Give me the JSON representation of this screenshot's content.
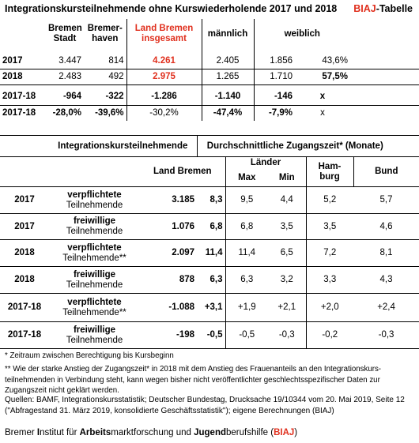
{
  "header": {
    "title": "Integrationskursteilnehmende ohne Kurswiederholende 2017 und 2018",
    "brand_prefix": "BIAJ",
    "brand_suffix": "-Tabelle"
  },
  "table1": {
    "head": {
      "bremen_stadt_1": "Bremen",
      "bremen_stadt_2": "Stadt",
      "bremerhaven_1": "Bremer-",
      "bremerhaven_2": "haven",
      "land_1": "Land Bremen",
      "land_2": "insgesamt",
      "maennlich": "männlich",
      "weiblich": "weiblich"
    },
    "rows": [
      {
        "year": "2017",
        "stadt": "3.447",
        "bhv": "814",
        "land": "4.261",
        "m": "2.405",
        "w": "1.856",
        "pct": "43,6%"
      },
      {
        "year": "2018",
        "stadt": "2.483",
        "bhv": "492",
        "land": "2.975",
        "m": "1.265",
        "w": "1.710",
        "pct": "57,5%"
      },
      {
        "year": "2017-18",
        "stadt": "-964",
        "bhv": "-322",
        "land": "-1.286",
        "m": "-1.140",
        "w": "-146",
        "pct": "x"
      },
      {
        "year": "2017-18",
        "stadt": "-28,0%",
        "bhv": "-39,6%",
        "land": "-30,2%",
        "m": "-47,4%",
        "w": "-7,9%",
        "pct": "x"
      }
    ]
  },
  "table2": {
    "head": {
      "group": "Integrationskursteilnehmende",
      "durchschnitt": "Durchschnittliche Zugangszeit* (Monate)",
      "land": "Land Bremen",
      "laender": "Länder",
      "max": "Max",
      "min": "Min",
      "hamburg_1": "Ham-",
      "hamburg_2": "burg",
      "bund": "Bund"
    },
    "rows": [
      {
        "year": "2017",
        "g1": "verpflichtete",
        "g2": "Teilnehmende",
        "n": "3.185",
        "z": "8,3",
        "max": "9,5",
        "min": "4,4",
        "hh": "5,2",
        "bund": "5,7"
      },
      {
        "year": "2017",
        "g1": "freiwillige",
        "g2": "Teilnehmende",
        "n": "1.076",
        "z": "6,8",
        "max": "6,8",
        "min": "3,5",
        "hh": "3,5",
        "bund": "4,6"
      },
      {
        "year": "2018",
        "g1": "verpflichtete",
        "g2": "Teilnehmende**",
        "n": "2.097",
        "z": "11,4",
        "max": "11,4",
        "min": "6,5",
        "hh": "7,2",
        "bund": "8,1"
      },
      {
        "year": "2018",
        "g1": "freiwillige",
        "g2": "Teilnehmende",
        "n": "878",
        "z": "6,3",
        "max": "6,3",
        "min": "3,2",
        "hh": "3,3",
        "bund": "4,3"
      },
      {
        "year": "2017-18",
        "g1": "verpflichtete",
        "g2": "Teilnehmende**",
        "n": "-1.088",
        "z": "+3,1",
        "max": "+1,9",
        "min": "+2,1",
        "hh": "+2,0",
        "bund": "+2,4"
      },
      {
        "year": "2017-18",
        "g1": "freiwillige",
        "g2": "Teilnehmende",
        "n": "-198",
        "z": "-0,5",
        "max": "-0,5",
        "min": "-0,3",
        "hh": "-0,2",
        "bund": "-0,3"
      }
    ]
  },
  "notes": {
    "n1": "* Zeitraum zwischen Berechtigung bis Kursbeginn",
    "n2": "** Wie der starke Anstieg der Zugangszeit* in 2018 mit dem Anstieg des Frauenanteils an den Integrationskurs-teilnehmenden in Verbindung steht, kann wegen bisher nicht veröffentlichter geschlechtsspezifischer Daten zur Zugangszeit nicht geklärt werden."
  },
  "sources": "Quellen: BAMF, Integrationskursstatistik; Deutscher Bundestag, Drucksache 19/10344 vom 20. Mai 2019, Seite 12 (\"Abfragestand 31. März 2019, konsolidierte Geschäftsstatistik\"); eigene Berechnungen (BIAJ)",
  "footer": {
    "w1a": "Bremer ",
    "w1b": "I",
    "w1c": "nstitut für ",
    "w2a": "A",
    "w2b": "rbeits",
    "w2c": "marktforschung und ",
    "w3a": "J",
    "w3b": "ugend",
    "w3c": "berufshilfe (",
    "w4": "BIAJ",
    "w5": ")"
  },
  "colors": {
    "accent": "#e0301e",
    "rule": "#000000"
  }
}
